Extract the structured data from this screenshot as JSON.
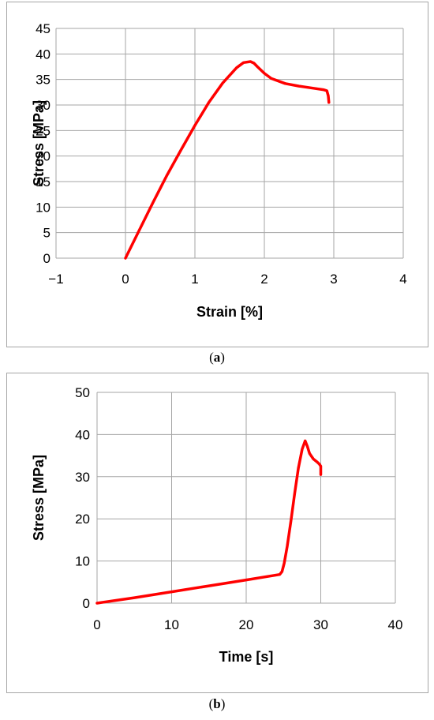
{
  "chart_data": [
    {
      "id": "a",
      "type": "line",
      "xlabel": "Strain [%]",
      "ylabel": "Stress [MPa]",
      "xlim": [
        -1,
        4
      ],
      "ylim": [
        0,
        45
      ],
      "xticks": [
        -1,
        0,
        1,
        2,
        3,
        4
      ],
      "yticks": [
        0,
        5,
        10,
        15,
        20,
        25,
        30,
        35,
        40,
        45
      ],
      "x_tick_labels": [
        "−1",
        "0",
        "1",
        "2",
        "3",
        "4"
      ],
      "y_tick_labels": [
        "0",
        "5",
        "10",
        "15",
        "20",
        "25",
        "30",
        "35",
        "40",
        "45"
      ],
      "grid": true,
      "line_color": "#ff0000",
      "series": [
        {
          "x": [
            0,
            0.2,
            0.4,
            0.6,
            0.8,
            1.0,
            1.2,
            1.4,
            1.6,
            1.7,
            1.8,
            1.85,
            1.9,
            2.0,
            2.1,
            2.3,
            2.5,
            2.7,
            2.85,
            2.9,
            2.92,
            2.93
          ],
          "y": [
            0,
            5.5,
            11,
            16.3,
            21.2,
            26,
            30.5,
            34.3,
            37.3,
            38.3,
            38.5,
            38.2,
            37.5,
            36.2,
            35.2,
            34.2,
            33.7,
            33.3,
            33,
            32.8,
            31.8,
            30.5
          ]
        }
      ]
    },
    {
      "id": "b",
      "type": "line",
      "xlabel": "Time [s]",
      "ylabel": "Stress [MPa]",
      "xlim": [
        0,
        40
      ],
      "ylim": [
        0,
        50
      ],
      "xticks": [
        0,
        10,
        20,
        30,
        40
      ],
      "yticks": [
        0,
        10,
        20,
        30,
        40,
        50
      ],
      "x_tick_labels": [
        "0",
        "10",
        "20",
        "30",
        "40"
      ],
      "y_tick_labels": [
        "0",
        "10",
        "20",
        "30",
        "40",
        "50"
      ],
      "grid": true,
      "line_color": "#ff0000",
      "series": [
        {
          "x": [
            0,
            5,
            10,
            15,
            20,
            24.5,
            24.8,
            25.1,
            25.5,
            26,
            26.5,
            27,
            27.5,
            27.9,
            28.2,
            28.5,
            29,
            29.5,
            29.8,
            30,
            30
          ],
          "y": [
            0,
            1.3,
            2.7,
            4.1,
            5.5,
            6.8,
            7.5,
            9.5,
            13.5,
            19.5,
            26,
            32,
            36.5,
            38.5,
            37.2,
            35.5,
            34.2,
            33.5,
            33,
            32.5,
            30.5
          ]
        }
      ]
    }
  ],
  "captions": {
    "a": "a",
    "b": "b"
  }
}
